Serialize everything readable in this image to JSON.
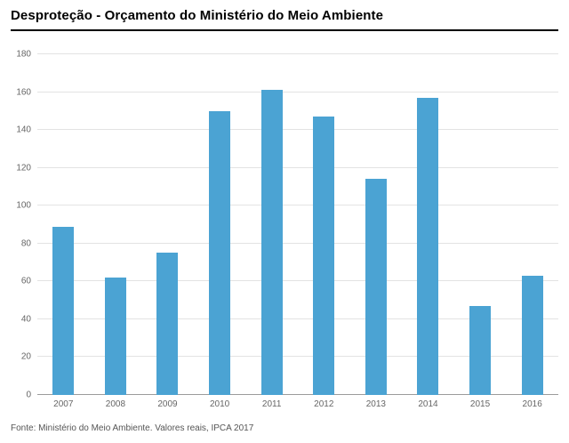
{
  "page": {
    "title": "Desproteção - Orçamento do Ministério do Meio Ambiente",
    "source_note": "Fonte: Ministério do Meio Ambiente. Valores reais, IPCA 2017"
  },
  "chart_data": {
    "type": "bar",
    "title": "Desproteção - Orçamento do Ministério do Meio Ambiente",
    "categories": [
      "2007",
      "2008",
      "2009",
      "2010",
      "2011",
      "2012",
      "2013",
      "2014",
      "2015",
      "2016"
    ],
    "values": [
      89,
      62,
      75,
      150,
      161,
      147,
      114,
      157,
      47,
      63
    ],
    "xlabel": "",
    "ylabel": "",
    "ylim": [
      0,
      180
    ],
    "ytick_step": 20,
    "grid": true,
    "legend": "none",
    "bar_color": "#4ba3d3",
    "source_note": "Fonte: Ministério do Meio Ambiente. Valores reais, IPCA 2017"
  },
  "colors": {
    "bar": "#4ba3d3",
    "gridline": "#e3e3e3",
    "baseline": "#9b9b9b",
    "tick_label": "#666666",
    "title": "#000000",
    "title_rule": "#000000",
    "source": "#555555",
    "background": "#ffffff"
  }
}
